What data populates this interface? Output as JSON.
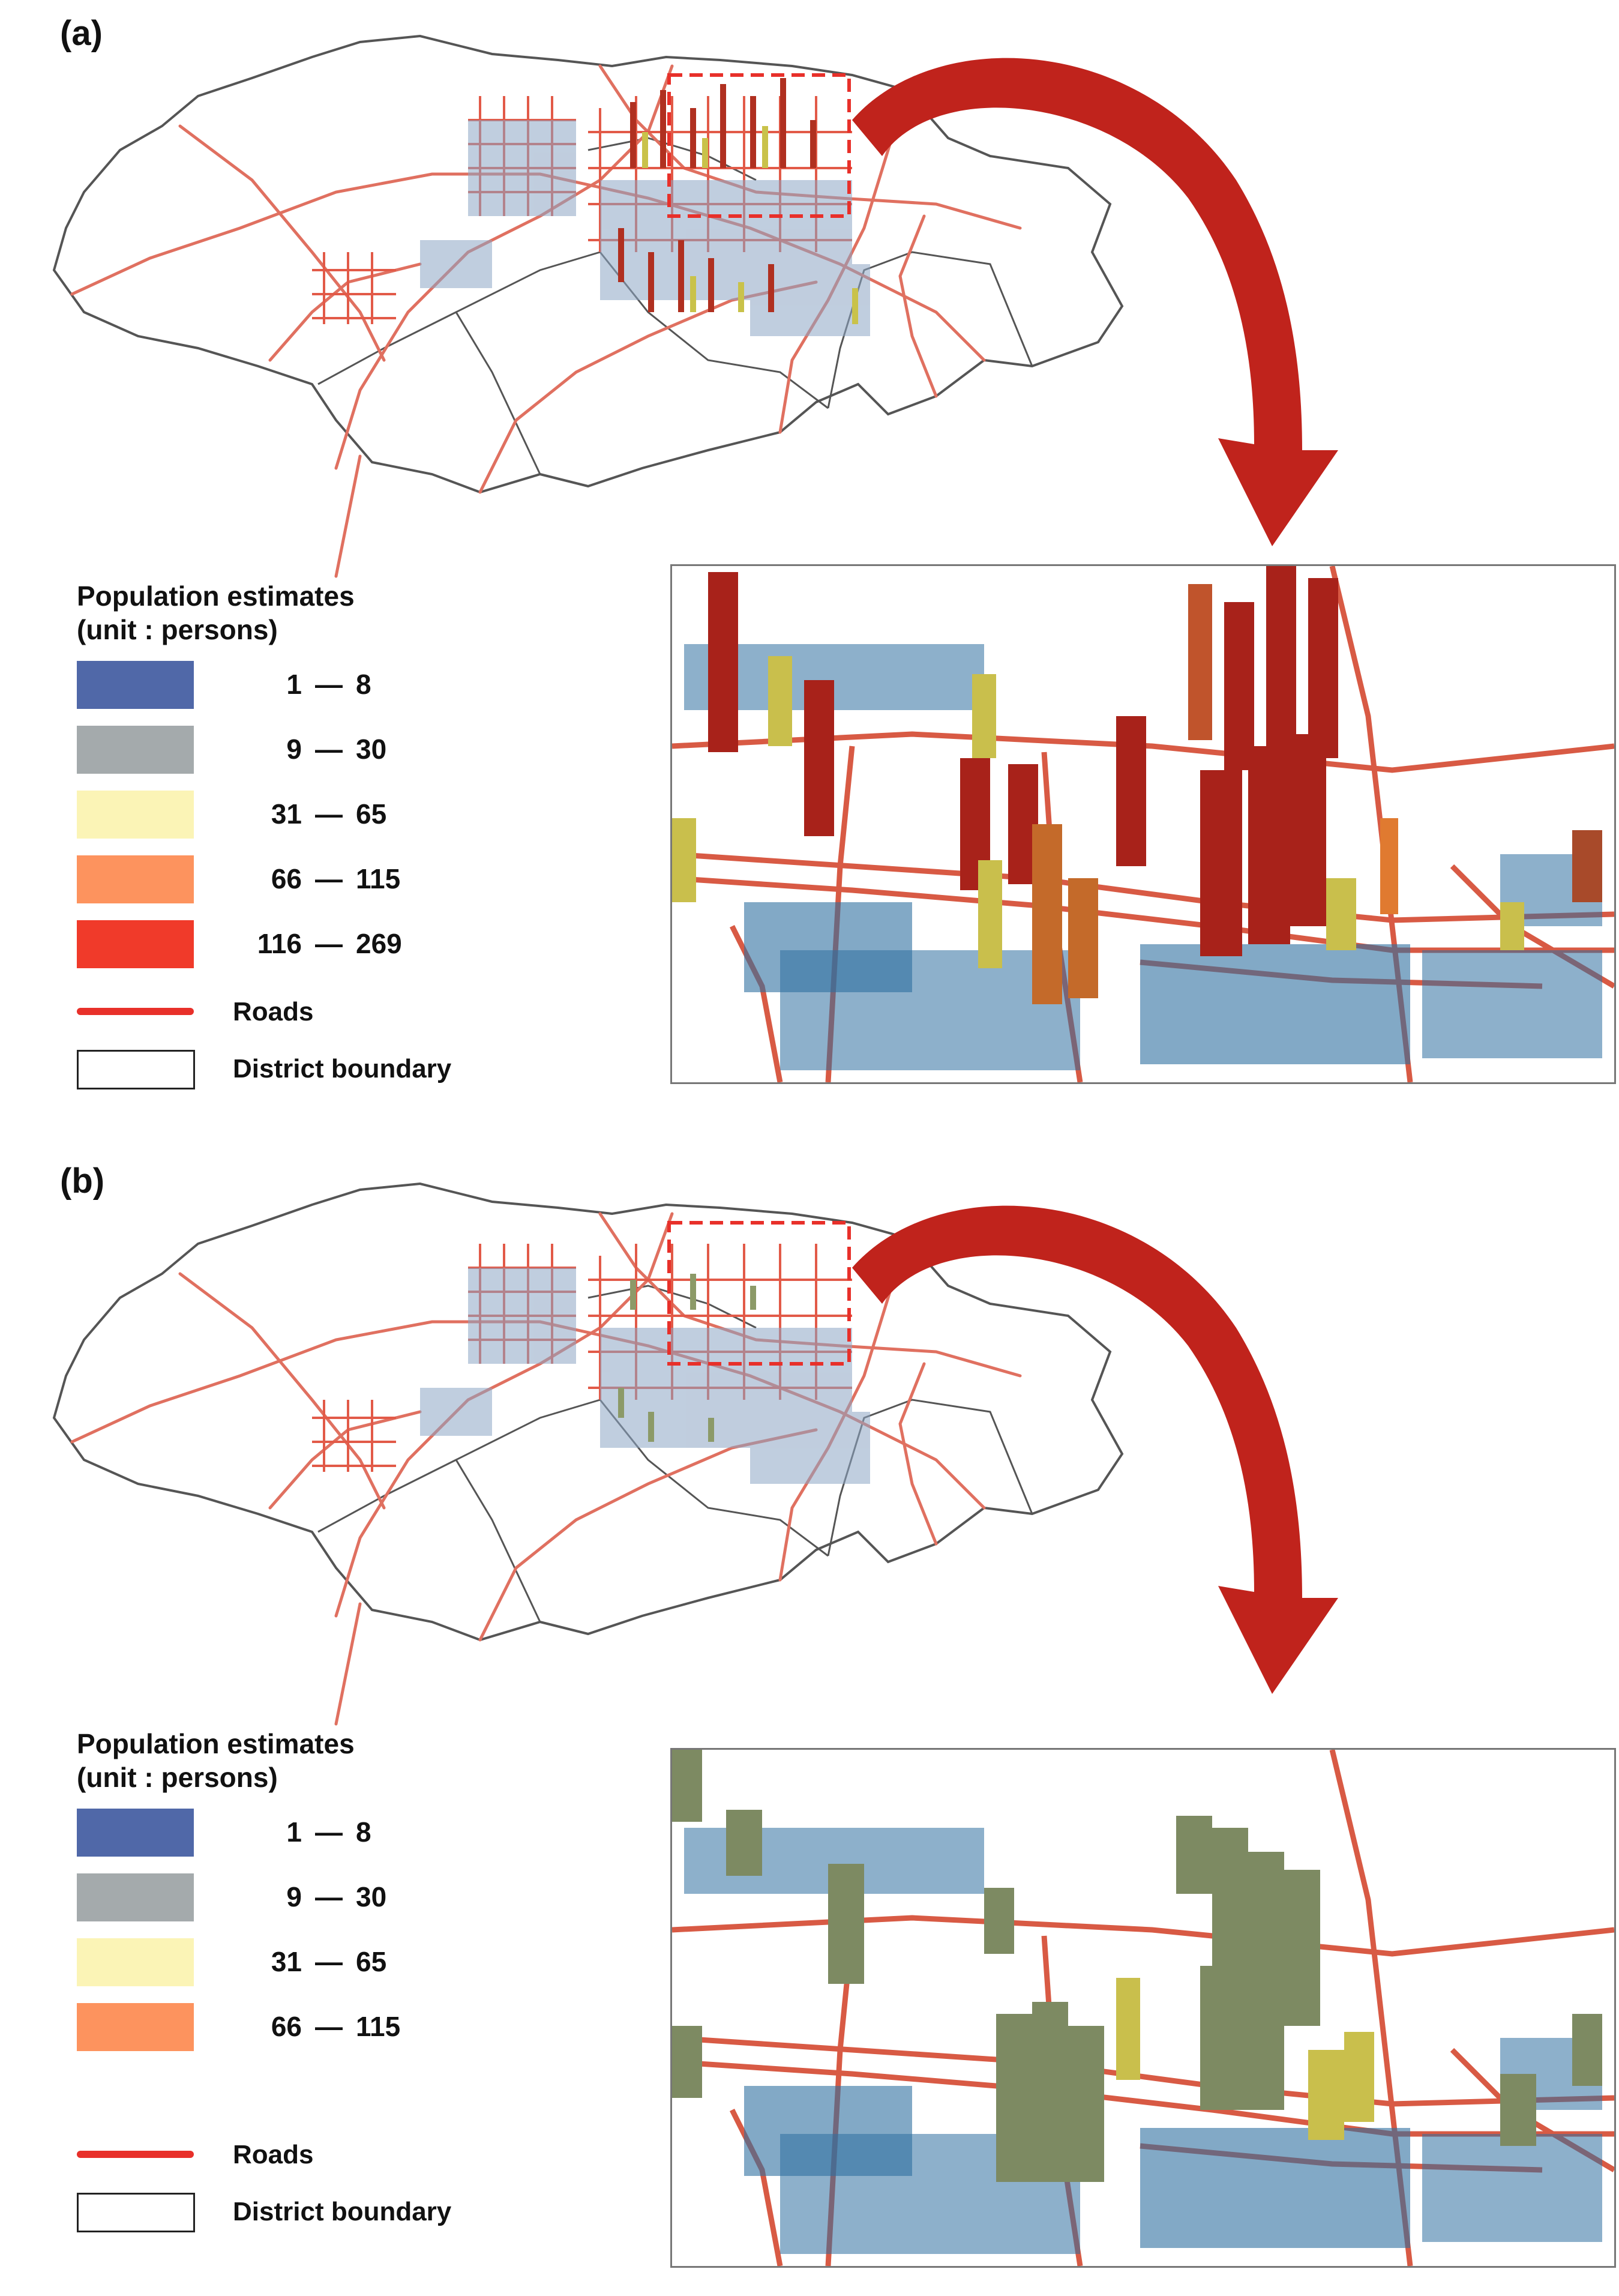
{
  "panels": [
    {
      "label": "(a)",
      "legend": {
        "title_line1": "Population estimates",
        "title_line2": "(unit : persons)",
        "classes": [
          {
            "lo": "1",
            "hi": "8",
            "color": "#5068a8"
          },
          {
            "lo": "9",
            "hi": "30",
            "color": "#a4aaac"
          },
          {
            "lo": "31",
            "hi": "65",
            "color": "#fbf4b6"
          },
          {
            "lo": "66",
            "hi": "115",
            "color": "#fd935e"
          },
          {
            "lo": "116",
            "hi": "269",
            "color": "#f03a2a"
          }
        ],
        "roads_label": "Roads",
        "boundary_label": "District boundary"
      }
    },
    {
      "label": "(b)",
      "legend": {
        "title_line1": "Population estimates",
        "title_line2": "(unit : persons)",
        "classes": [
          {
            "lo": "1",
            "hi": "8",
            "color": "#5068a8"
          },
          {
            "lo": "9",
            "hi": "30",
            "color": "#a4aaac"
          },
          {
            "lo": "31",
            "hi": "65",
            "color": "#fbf4b6"
          },
          {
            "lo": "66",
            "hi": "115",
            "color": "#fd935e"
          }
        ],
        "roads_label": "Roads",
        "boundary_label": "District boundary"
      }
    }
  ],
  "dash": "—",
  "colors": {
    "road": "#e8302a",
    "boundary": "#555555",
    "arrow": "#c0231c",
    "highlight": "#e8302a"
  }
}
